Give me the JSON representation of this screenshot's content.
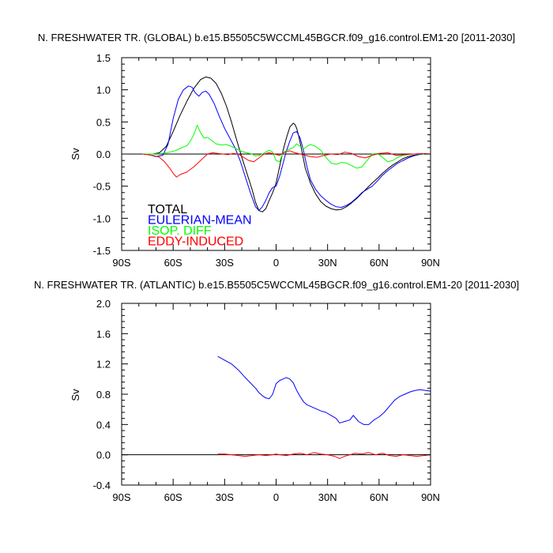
{
  "chart_data": [
    {
      "type": "line",
      "title": "N. FRESHWATER TR. (GLOBAL) b.e15.B5505C5WCCML45BGCR.f09_g16.control.EM1-20 [2011-2030]",
      "xlabel": "",
      "ylabel": "Sv",
      "xlim": [
        -90,
        90
      ],
      "ylim": [
        -1.5,
        1.5
      ],
      "xticks": [
        -90,
        -60,
        -30,
        0,
        30,
        60,
        90
      ],
      "xtick_labels": [
        "90S",
        "60S",
        "30S",
        "0",
        "30N",
        "60N",
        "90N"
      ],
      "yticks": [
        -1.5,
        -1.0,
        -0.5,
        0.0,
        0.5,
        1.0,
        1.5
      ],
      "ytick_labels": [
        "-1.5",
        "-1.0",
        "-0.5",
        "0.0",
        "0.5",
        "1.0",
        "1.5"
      ],
      "legend_position": "bottom-left",
      "series": [
        {
          "name": "TOTAL",
          "color": "#000000",
          "x": [
            -78,
            -72,
            -68,
            -64,
            -60,
            -56,
            -52,
            -48,
            -44,
            -41,
            -38,
            -35,
            -32,
            -29,
            -26,
            -23,
            -20,
            -17,
            -14,
            -12,
            -10,
            -8,
            -6,
            -4,
            -2,
            0,
            2,
            4,
            6,
            8,
            10,
            11,
            12,
            13,
            15,
            17,
            20,
            23,
            26,
            29,
            32,
            35,
            38,
            41,
            44,
            47,
            50,
            53,
            56,
            59,
            62,
            65,
            68,
            71,
            74,
            77,
            80,
            83,
            86,
            90
          ],
          "y": [
            0.0,
            0.0,
            0.02,
            0.12,
            0.35,
            0.6,
            0.82,
            1.02,
            1.16,
            1.2,
            1.18,
            1.1,
            0.95,
            0.75,
            0.5,
            0.22,
            -0.05,
            -0.3,
            -0.55,
            -0.75,
            -0.88,
            -0.9,
            -0.85,
            -0.72,
            -0.6,
            -0.45,
            -0.2,
            0.05,
            0.25,
            0.42,
            0.48,
            0.46,
            0.4,
            0.3,
            0.05,
            -0.22,
            -0.45,
            -0.62,
            -0.74,
            -0.81,
            -0.85,
            -0.87,
            -0.86,
            -0.82,
            -0.76,
            -0.69,
            -0.61,
            -0.53,
            -0.45,
            -0.38,
            -0.3,
            -0.23,
            -0.17,
            -0.12,
            -0.07,
            -0.04,
            -0.02,
            -0.01,
            0.0,
            0.0
          ]
        },
        {
          "name": "EULERIAN-MEAN",
          "color": "#0000ff",
          "x": [
            -78,
            -74,
            -70,
            -66,
            -63,
            -60,
            -57,
            -54,
            -51,
            -49,
            -47,
            -45,
            -43,
            -41,
            -39,
            -36,
            -33,
            -30,
            -27,
            -24,
            -21,
            -18,
            -15,
            -12,
            -10,
            -8,
            -6,
            -4,
            -2,
            0,
            2,
            4,
            6,
            8,
            10,
            12,
            14,
            16,
            18,
            20,
            23,
            26,
            29,
            32,
            35,
            38,
            41,
            44,
            47,
            50,
            53,
            56,
            59,
            62,
            65,
            68,
            71,
            74,
            77,
            80,
            83,
            86,
            90
          ],
          "y": [
            0.0,
            -0.01,
            -0.04,
            -0.02,
            0.15,
            0.55,
            0.85,
            1.0,
            1.06,
            1.04,
            0.95,
            0.9,
            0.96,
            0.98,
            0.93,
            0.78,
            0.58,
            0.4,
            0.25,
            0.1,
            -0.1,
            -0.35,
            -0.6,
            -0.82,
            -0.88,
            -0.82,
            -0.72,
            -0.6,
            -0.52,
            -0.5,
            -0.35,
            -0.15,
            0.05,
            0.2,
            0.33,
            0.35,
            0.25,
            0.05,
            -0.2,
            -0.4,
            -0.55,
            -0.65,
            -0.72,
            -0.78,
            -0.82,
            -0.83,
            -0.8,
            -0.75,
            -0.68,
            -0.6,
            -0.55,
            -0.5,
            -0.42,
            -0.33,
            -0.26,
            -0.2,
            -0.14,
            -0.1,
            -0.06,
            -0.03,
            -0.01,
            0.0,
            0.0
          ]
        },
        {
          "name": "ISOP. DIFF",
          "color": "#00ff00",
          "x": [
            -78,
            -72,
            -66,
            -62,
            -58,
            -55,
            -52,
            -50,
            -48,
            -46,
            -44,
            -42,
            -40,
            -38,
            -35,
            -32,
            -29,
            -26,
            -23,
            -20,
            -17,
            -14,
            -12,
            -10,
            -8,
            -6,
            -4,
            -2,
            0,
            2,
            4,
            6,
            8,
            10,
            12,
            14,
            16,
            18,
            20,
            23,
            26,
            29,
            32,
            35,
            38,
            41,
            44,
            47,
            50,
            53,
            56,
            59,
            62,
            65,
            68,
            71,
            74,
            77,
            80,
            84,
            90
          ],
          "y": [
            0.0,
            0.0,
            0.01,
            0.03,
            0.06,
            0.1,
            0.13,
            0.2,
            0.3,
            0.45,
            0.33,
            0.25,
            0.26,
            0.22,
            0.16,
            0.14,
            0.15,
            0.12,
            0.08,
            0.04,
            0.02,
            0.0,
            -0.03,
            -0.02,
            0.0,
            0.03,
            0.06,
            0.03,
            -0.1,
            -0.12,
            0.02,
            0.05,
            0.08,
            0.1,
            0.16,
            0.12,
            0.08,
            0.12,
            0.15,
            0.12,
            0.06,
            -0.05,
            -0.14,
            -0.16,
            -0.13,
            -0.14,
            -0.18,
            -0.22,
            -0.2,
            -0.1,
            0.0,
            0.01,
            -0.05,
            -0.12,
            -0.1,
            -0.05,
            -0.02,
            -0.01,
            0.0,
            0.0,
            0.0
          ]
        },
        {
          "name": "EDDY-INDUCED",
          "color": "#ff0000",
          "x": [
            -78,
            -72,
            -68,
            -65,
            -62,
            -60,
            -58,
            -56,
            -54,
            -52,
            -50,
            -48,
            -46,
            -44,
            -42,
            -40,
            -37,
            -34,
            -31,
            -28,
            -25,
            -22,
            -19,
            -16,
            -13,
            -10,
            -7,
            -4,
            -1,
            2,
            5,
            8,
            11,
            14,
            17,
            20,
            24,
            28,
            32,
            36,
            40,
            44,
            48,
            52,
            56,
            60,
            65,
            70,
            75,
            80,
            85,
            90
          ],
          "y": [
            0.0,
            -0.02,
            -0.05,
            -0.12,
            -0.22,
            -0.3,
            -0.36,
            -0.32,
            -0.3,
            -0.28,
            -0.24,
            -0.2,
            -0.15,
            -0.1,
            -0.05,
            0.0,
            0.02,
            0.01,
            0.0,
            -0.01,
            0.01,
            0.0,
            -0.05,
            -0.1,
            -0.12,
            -0.06,
            0.0,
            0.02,
            0.0,
            -0.02,
            0.03,
            0.05,
            0.02,
            0.0,
            -0.02,
            -0.04,
            -0.05,
            -0.02,
            0.0,
            -0.01,
            0.03,
            0.01,
            -0.04,
            -0.06,
            -0.02,
            0.01,
            0.02,
            -0.02,
            -0.01,
            0.0,
            0.01,
            0.0
          ]
        }
      ]
    },
    {
      "type": "line",
      "title": "N. FRESHWATER TR. (ATLANTIC) b.e15.B5505C5WCCML45BGCR.f09_g16.control.EM1-20 [2011-2030]",
      "xlabel": "",
      "ylabel": "Sv",
      "xlim": [
        -90,
        90
      ],
      "ylim": [
        -0.4,
        2.0
      ],
      "xticks": [
        -90,
        -60,
        -30,
        0,
        30,
        60,
        90
      ],
      "xtick_labels": [
        "90S",
        "60S",
        "30S",
        "0",
        "30N",
        "60N",
        "90N"
      ],
      "yticks": [
        -0.4,
        0.0,
        0.4,
        0.8,
        1.2,
        1.6,
        2.0
      ],
      "ytick_labels": [
        "-0.4",
        "0.0",
        "0.4",
        "0.8",
        "1.2",
        "1.6",
        "2.0"
      ],
      "series": [
        {
          "color": "#0000ff",
          "x": [
            -34,
            -30,
            -26,
            -22,
            -18,
            -15,
            -12,
            -10,
            -8,
            -6,
            -4,
            -2,
            0,
            2,
            4,
            6,
            8,
            10,
            12,
            14,
            16,
            18,
            20,
            23,
            26,
            29,
            32,
            35,
            37,
            40,
            43,
            45,
            48,
            51,
            54,
            57,
            60,
            63,
            66,
            69,
            72,
            75,
            78,
            81,
            84,
            87,
            90
          ],
          "y": [
            1.3,
            1.25,
            1.2,
            1.12,
            1.02,
            0.95,
            0.88,
            0.82,
            0.78,
            0.75,
            0.74,
            0.8,
            0.94,
            0.98,
            1.0,
            1.02,
            1.0,
            0.95,
            0.85,
            0.77,
            0.7,
            0.66,
            0.64,
            0.61,
            0.58,
            0.56,
            0.52,
            0.48,
            0.42,
            0.44,
            0.46,
            0.52,
            0.44,
            0.4,
            0.4,
            0.46,
            0.5,
            0.56,
            0.64,
            0.72,
            0.77,
            0.8,
            0.83,
            0.85,
            0.86,
            0.85,
            0.84
          ]
        },
        {
          "color": "#ff0000",
          "x": [
            -34,
            -30,
            -26,
            -22,
            -18,
            -14,
            -10,
            -6,
            -2,
            0,
            2,
            6,
            10,
            14,
            18,
            22,
            26,
            30,
            34,
            37,
            40,
            43,
            46,
            50,
            54,
            58,
            62,
            66,
            70,
            74,
            78,
            82,
            86,
            90
          ],
          "y": [
            0.01,
            0.01,
            0.0,
            -0.01,
            -0.02,
            -0.01,
            0.0,
            -0.01,
            0.0,
            0.01,
            0.0,
            -0.01,
            0.01,
            0.02,
            0.0,
            0.03,
            0.01,
            0.0,
            -0.02,
            -0.05,
            -0.02,
            0.0,
            0.02,
            0.01,
            0.03,
            0.0,
            0.02,
            -0.01,
            -0.02,
            0.0,
            -0.01,
            -0.02,
            -0.01,
            0.0
          ]
        }
      ]
    }
  ]
}
